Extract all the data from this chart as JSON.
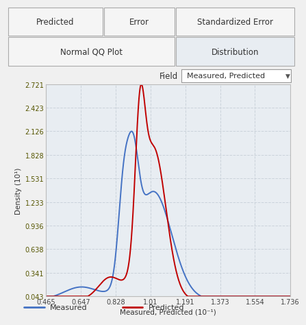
{
  "ylabel": "Density (10¹)",
  "xlabel": "Measured, Predicted (10⁻¹)",
  "xlim": [
    0.465,
    1.736
  ],
  "ylim": [
    0.043,
    2.721
  ],
  "yticks": [
    0.043,
    0.341,
    0.638,
    0.936,
    1.233,
    1.531,
    1.828,
    2.126,
    2.423,
    2.721
  ],
  "xticks": [
    0.465,
    0.647,
    0.828,
    1.01,
    1.191,
    1.373,
    1.554,
    1.736
  ],
  "bg_color": "#f0f0f0",
  "plot_bg_color": "#e8edf2",
  "grid_color": "#c8d0d8",
  "blue_color": "#4472c4",
  "red_color": "#c00000",
  "legend_measured": "Measured",
  "legend_predicted": "Predicted",
  "tab_top": [
    "Predicted",
    "Error",
    "Standardized Error"
  ],
  "tab_bot": [
    "Normal QQ Plot",
    "Distribution"
  ],
  "field_label": "Field",
  "field_value": "Measured, Predicted"
}
